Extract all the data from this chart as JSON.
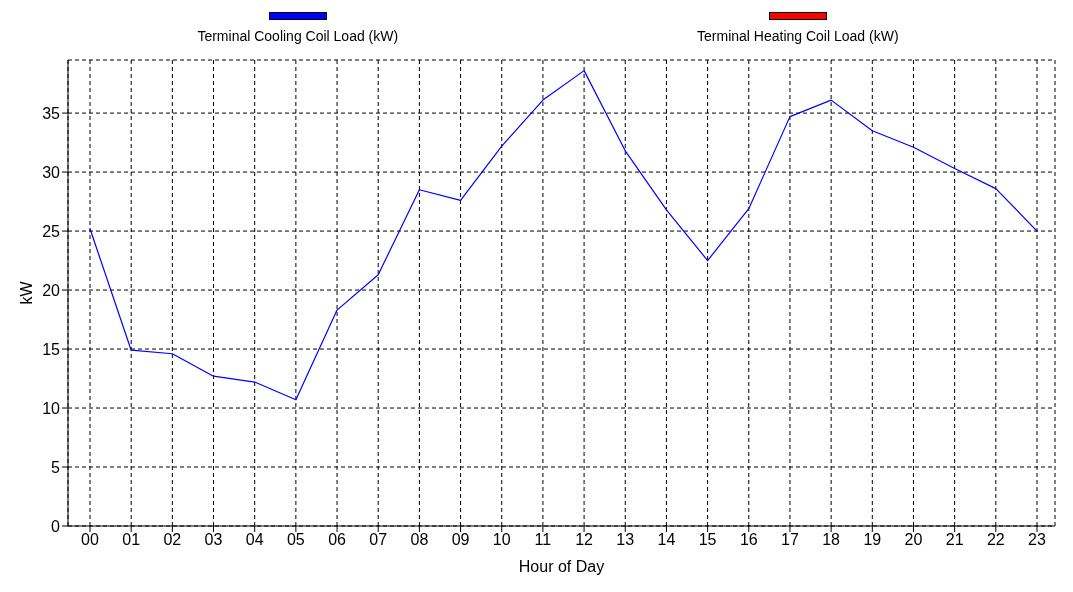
{
  "chart_data": {
    "type": "line",
    "xlabel": "Hour of Day",
    "ylabel": "kW",
    "categories": [
      "00",
      "01",
      "02",
      "03",
      "04",
      "05",
      "06",
      "07",
      "08",
      "09",
      "10",
      "11",
      "12",
      "13",
      "14",
      "15",
      "16",
      "17",
      "18",
      "19",
      "20",
      "21",
      "22",
      "23"
    ],
    "series": [
      {
        "name": "Terminal Cooling Coil Load (kW)",
        "color": "#0000ff",
        "values": [
          25.2,
          14.9,
          14.6,
          12.7,
          12.2,
          10.7,
          18.3,
          21.3,
          28.5,
          27.6,
          32.2,
          36.1,
          38.6,
          31.8,
          26.8,
          22.5,
          26.9,
          34.7,
          36.1,
          33.5,
          32.1,
          30.3,
          28.6,
          25.0
        ]
      },
      {
        "name": "Terminal Heating Coil Load (kW)",
        "color": "#ff0000",
        "values": [
          null,
          null,
          null,
          null,
          null,
          null,
          null,
          null,
          null,
          null,
          null,
          null,
          null,
          null,
          null,
          null,
          null,
          null,
          null,
          null,
          null,
          null,
          null,
          null
        ]
      }
    ],
    "ylim": [
      0,
      39.5
    ],
    "yticks": [
      0,
      5,
      10,
      15,
      20,
      25,
      30,
      35
    ],
    "grid": true,
    "legend": "top",
    "marker": "none",
    "line_style": "solid"
  }
}
